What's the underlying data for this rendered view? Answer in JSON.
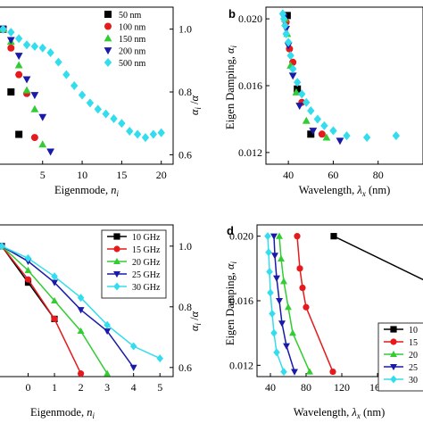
{
  "colors": {
    "black": "#000000",
    "red": "#e41a1c",
    "green": "#33cc33",
    "blue": "#1a1aa8",
    "cyan": "#33ddee"
  },
  "chart_data": [
    {
      "panel": "a",
      "type": "scatter",
      "letter": "",
      "xlabel_main": "Eigenmode, ",
      "xlabel_var": "n",
      "xlabel_sub": "i",
      "ylabel": "",
      "ylabel_right": "α_i / α",
      "xlim": [
        -0.5,
        21.5
      ],
      "ylim_right": [
        0.57,
        1.07
      ],
      "xticks": [
        "5",
        "10",
        "15",
        "20"
      ],
      "yticks_right": [
        "0.6",
        "0.8",
        "1.0"
      ],
      "legend": [
        "50 nm",
        "100 nm",
        "150 nm",
        "200 nm",
        "500 nm"
      ],
      "series": [
        {
          "name": "50 nm",
          "marker": "square",
          "color": "#000000",
          "x": [
            0,
            1,
            2
          ],
          "y": [
            1.0,
            0.8,
            0.665
          ]
        },
        {
          "name": "100 nm",
          "marker": "circle",
          "color": "#e41a1c",
          "x": [
            0,
            1,
            2,
            3,
            4
          ],
          "y": [
            1.0,
            0.94,
            0.855,
            0.795,
            0.655
          ]
        },
        {
          "name": "150 nm",
          "marker": "triangle-up",
          "color": "#33cc33",
          "x": [
            0,
            1,
            2,
            3,
            4,
            5
          ],
          "y": [
            1.0,
            0.96,
            0.885,
            0.805,
            0.745,
            0.633
          ]
        },
        {
          "name": "200 nm",
          "marker": "triangle-down",
          "color": "#1a1aa8",
          "x": [
            0,
            1,
            2,
            3,
            4,
            5,
            6
          ],
          "y": [
            1.0,
            0.965,
            0.915,
            0.84,
            0.79,
            0.72,
            0.61
          ]
        },
        {
          "name": "500 nm",
          "marker": "diamond",
          "color": "#33ddee",
          "x": [
            0,
            1,
            2,
            3,
            4,
            5,
            6,
            7,
            8,
            9,
            10,
            11,
            12,
            13,
            14,
            15,
            16,
            17,
            18,
            19,
            20
          ],
          "y": [
            1.0,
            0.99,
            0.97,
            0.95,
            0.945,
            0.94,
            0.925,
            0.895,
            0.855,
            0.82,
            0.79,
            0.765,
            0.745,
            0.73,
            0.715,
            0.7,
            0.675,
            0.665,
            0.655,
            0.665,
            0.67
          ]
        }
      ]
    },
    {
      "panel": "b",
      "type": "scatter",
      "letter": "b",
      "xlabel_main": "Wavelength, ",
      "xlabel_var": "λ",
      "xlabel_sub": "x",
      "xlabel_unit": " (nm)",
      "ylabel_main": "Eigen Damping, ",
      "ylabel_var": "α",
      "ylabel_sub": "i",
      "xlim": [
        30,
        100
      ],
      "ylim": [
        0.0113,
        0.0207
      ],
      "xticks": [
        "40",
        "60",
        "80"
      ],
      "yticks": [
        "0.012",
        "0.016",
        "0.020"
      ],
      "series": [
        {
          "name": "50 nm",
          "marker": "square",
          "color": "#000000",
          "x": [
            39.5,
            44,
            50
          ],
          "y": [
            0.0202,
            0.0158,
            0.0131
          ]
        },
        {
          "name": "100 nm",
          "marker": "circle",
          "color": "#e41a1c",
          "x": [
            39,
            40.5,
            42,
            46,
            55
          ],
          "y": [
            0.0198,
            0.0182,
            0.0174,
            0.015,
            0.0131
          ]
        },
        {
          "name": "150 nm",
          "marker": "triangle-up",
          "color": "#33cc33",
          "x": [
            38.5,
            39.5,
            41,
            43.5,
            48,
            57
          ],
          "y": [
            0.02,
            0.0191,
            0.0172,
            0.0156,
            0.0139,
            0.0129
          ]
        },
        {
          "name": "200 nm",
          "marker": "triangle-down",
          "color": "#1a1aa8",
          "x": [
            38,
            39,
            40,
            42,
            45,
            51,
            63
          ],
          "y": [
            0.0201,
            0.0194,
            0.0184,
            0.0166,
            0.0148,
            0.0133,
            0.0127
          ]
        },
        {
          "name": "500 nm",
          "marker": "diamond",
          "color": "#33ddee",
          "x": [
            37.5,
            38,
            38.5,
            39,
            40,
            41,
            42,
            44,
            46,
            48,
            50,
            53,
            56,
            60,
            66,
            75,
            88
          ],
          "y": [
            0.0203,
            0.02,
            0.0196,
            0.0191,
            0.0186,
            0.0178,
            0.017,
            0.0162,
            0.0155,
            0.015,
            0.0145,
            0.014,
            0.0136,
            0.0133,
            0.013,
            0.0129,
            0.013
          ]
        }
      ]
    },
    {
      "panel": "c",
      "type": "line",
      "letter": "",
      "xlabel_main": "Eigenmode, ",
      "xlabel_var": "n",
      "xlabel_sub": "i",
      "ylabel_right": "α_i / α",
      "xlim": [
        -1.1,
        5.5
      ],
      "ylim_right": [
        0.57,
        1.07
      ],
      "xticks": [
        "0",
        "1",
        "2",
        "3",
        "4",
        "5"
      ],
      "yticks_right": [
        "0.6",
        "0.8",
        "1.0"
      ],
      "legend": [
        "10 GHz",
        "15 GHz",
        "20 GHz",
        "25 GHz",
        "30 GHz"
      ],
      "series": [
        {
          "name": "10 GHz",
          "marker": "square",
          "color": "#000000",
          "x": [
            -1,
            0,
            1
          ],
          "y": [
            1.0,
            0.88,
            0.76
          ]
        },
        {
          "name": "15 GHz",
          "marker": "circle",
          "color": "#e41a1c",
          "x": [
            -1,
            0,
            1,
            2
          ],
          "y": [
            1.0,
            0.89,
            0.76,
            0.58
          ]
        },
        {
          "name": "20 GHz",
          "marker": "triangle-up",
          "color": "#33cc33",
          "x": [
            -1,
            0,
            1,
            2,
            3
          ],
          "y": [
            1.0,
            0.92,
            0.82,
            0.72,
            0.58
          ]
        },
        {
          "name": "25 GHz",
          "marker": "triangle-down",
          "color": "#1a1aa8",
          "x": [
            -1,
            0,
            1,
            2,
            3,
            4
          ],
          "y": [
            1.0,
            0.95,
            0.88,
            0.79,
            0.72,
            0.6
          ]
        },
        {
          "name": "30 GHz",
          "marker": "diamond",
          "color": "#33ddee",
          "x": [
            -1,
            0,
            1,
            2,
            3,
            4,
            5
          ],
          "y": [
            1.0,
            0.96,
            0.9,
            0.83,
            0.74,
            0.67,
            0.63
          ]
        }
      ]
    },
    {
      "panel": "d",
      "type": "line",
      "letter": "d",
      "xlabel_main": "Wavelength, ",
      "xlabel_var": "λ",
      "xlabel_sub": "x",
      "xlabel_unit": " (nm)",
      "ylabel_main": "Eigen Damping, ",
      "ylabel_var": "α",
      "ylabel_sub": "i",
      "xlim": [
        25,
        215
      ],
      "ylim": [
        0.0113,
        0.0207
      ],
      "xticks": [
        "40",
        "80",
        "120",
        "160",
        "2"
      ],
      "yticks": [
        "0.012",
        "0.016",
        "0.020"
      ],
      "legend": [
        "10",
        "15",
        "20",
        "25",
        "30"
      ],
      "series": [
        {
          "name": "10 GHz",
          "marker": "square",
          "color": "#000000",
          "x": [
            111,
            215
          ],
          "y": [
            0.02,
            0.0172
          ]
        },
        {
          "name": "15 GHz",
          "marker": "circle",
          "color": "#e41a1c",
          "x": [
            70,
            73,
            76,
            80,
            110
          ],
          "y": [
            0.02,
            0.018,
            0.0168,
            0.0156,
            0.0116
          ]
        },
        {
          "name": "20 GHz",
          "marker": "triangle-up",
          "color": "#33cc33",
          "x": [
            50,
            52,
            55,
            60,
            65,
            84
          ],
          "y": [
            0.02,
            0.0186,
            0.0172,
            0.0156,
            0.014,
            0.0116
          ]
        },
        {
          "name": "25 GHz",
          "marker": "triangle-down",
          "color": "#1a1aa8",
          "x": [
            44,
            45,
            47,
            50,
            53,
            58,
            67
          ],
          "y": [
            0.02,
            0.0188,
            0.0174,
            0.016,
            0.0146,
            0.0132,
            0.0116
          ]
        },
        {
          "name": "30 GHz",
          "marker": "diamond",
          "color": "#33ddee",
          "x": [
            37,
            38,
            39,
            40,
            42,
            44,
            47,
            55
          ],
          "y": [
            0.02,
            0.019,
            0.0178,
            0.0165,
            0.0152,
            0.014,
            0.0128,
            0.0116
          ]
        }
      ]
    }
  ]
}
